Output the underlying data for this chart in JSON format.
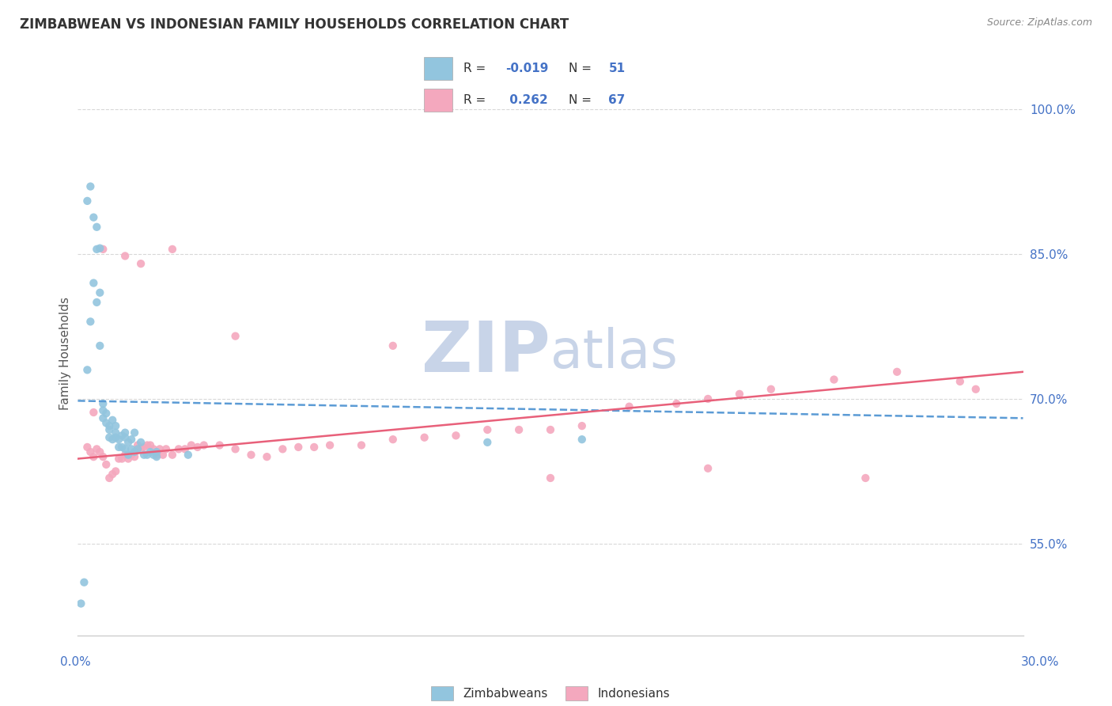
{
  "title": "ZIMBABWEAN VS INDONESIAN FAMILY HOUSEHOLDS CORRELATION CHART",
  "source": "Source: ZipAtlas.com",
  "ylabel": "Family Households",
  "ytick_values": [
    0.55,
    0.7,
    0.85,
    1.0
  ],
  "xmin": 0.0,
  "xmax": 0.3,
  "ymin": 0.455,
  "ymax": 1.04,
  "blue_color": "#92c5de",
  "pink_color": "#f4a8be",
  "blue_line_color": "#5b9bd5",
  "pink_line_color": "#e8607a",
  "title_color": "#404040",
  "source_color": "#888888",
  "axis_color": "#cccccc",
  "grid_color": "#d8d8d8",
  "watermark_zip_color": "#c8d4e8",
  "watermark_atlas_color": "#c8d4e8",
  "legend_text_color": "#4472c6",
  "legend_label_color": "#333333",
  "blue_dots_x": [
    0.003,
    0.004,
    0.005,
    0.006,
    0.006,
    0.007,
    0.007,
    0.008,
    0.008,
    0.009,
    0.009,
    0.01,
    0.01,
    0.011,
    0.011,
    0.012,
    0.012,
    0.013,
    0.013,
    0.014,
    0.014,
    0.015,
    0.015,
    0.016,
    0.016,
    0.017,
    0.017,
    0.018,
    0.019,
    0.02,
    0.021,
    0.022,
    0.023,
    0.024,
    0.025,
    0.003,
    0.004,
    0.005,
    0.006,
    0.007,
    0.008,
    0.01,
    0.012,
    0.015,
    0.018,
    0.025,
    0.035,
    0.002,
    0.001,
    0.13,
    0.16
  ],
  "blue_dots_y": [
    0.73,
    0.78,
    0.82,
    0.855,
    0.8,
    0.755,
    0.81,
    0.68,
    0.695,
    0.675,
    0.685,
    0.66,
    0.672,
    0.658,
    0.678,
    0.66,
    0.672,
    0.65,
    0.658,
    0.662,
    0.65,
    0.648,
    0.66,
    0.655,
    0.642,
    0.648,
    0.658,
    0.645,
    0.648,
    0.655,
    0.642,
    0.642,
    0.645,
    0.642,
    0.645,
    0.905,
    0.92,
    0.888,
    0.878,
    0.856,
    0.688,
    0.668,
    0.665,
    0.665,
    0.665,
    0.64,
    0.642,
    0.51,
    0.488,
    0.655,
    0.658
  ],
  "pink_dots_x": [
    0.003,
    0.004,
    0.005,
    0.006,
    0.007,
    0.008,
    0.009,
    0.01,
    0.011,
    0.012,
    0.013,
    0.014,
    0.015,
    0.016,
    0.017,
    0.018,
    0.019,
    0.02,
    0.021,
    0.022,
    0.023,
    0.024,
    0.025,
    0.026,
    0.027,
    0.028,
    0.03,
    0.032,
    0.034,
    0.036,
    0.038,
    0.04,
    0.045,
    0.05,
    0.055,
    0.06,
    0.065,
    0.07,
    0.075,
    0.08,
    0.09,
    0.1,
    0.11,
    0.12,
    0.13,
    0.14,
    0.15,
    0.16,
    0.175,
    0.19,
    0.2,
    0.21,
    0.22,
    0.24,
    0.26,
    0.28,
    0.005,
    0.008,
    0.015,
    0.02,
    0.03,
    0.05,
    0.1,
    0.15,
    0.2,
    0.25,
    0.285
  ],
  "pink_dots_y": [
    0.65,
    0.645,
    0.64,
    0.648,
    0.645,
    0.64,
    0.632,
    0.618,
    0.622,
    0.625,
    0.638,
    0.638,
    0.642,
    0.638,
    0.642,
    0.64,
    0.652,
    0.648,
    0.65,
    0.652,
    0.652,
    0.648,
    0.642,
    0.648,
    0.642,
    0.648,
    0.642,
    0.648,
    0.648,
    0.652,
    0.65,
    0.652,
    0.652,
    0.648,
    0.642,
    0.64,
    0.648,
    0.65,
    0.65,
    0.652,
    0.652,
    0.658,
    0.66,
    0.662,
    0.668,
    0.668,
    0.668,
    0.672,
    0.692,
    0.695,
    0.7,
    0.705,
    0.71,
    0.72,
    0.728,
    0.718,
    0.686,
    0.855,
    0.848,
    0.84,
    0.855,
    0.765,
    0.755,
    0.618,
    0.628,
    0.618,
    0.71
  ],
  "blue_line_x": [
    0.0,
    0.3
  ],
  "blue_line_y": [
    0.698,
    0.68
  ],
  "pink_line_x": [
    0.0,
    0.3
  ],
  "pink_line_y": [
    0.638,
    0.728
  ]
}
